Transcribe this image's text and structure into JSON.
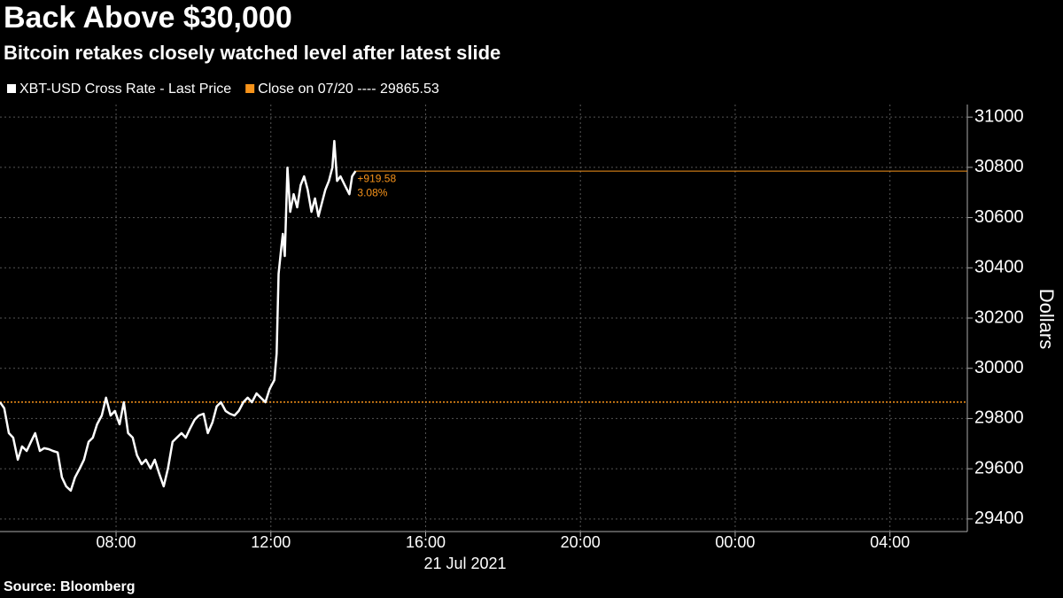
{
  "chart_data": {
    "type": "line",
    "title": "Back Above $30,000",
    "subtitle": "Bitcoin retakes closely watched level after latest slide",
    "x_axis_label": "21 Jul 2021",
    "y_axis_label": "Dollars",
    "source": "Source:  Bloomberg",
    "xlim": [
      5,
      30
    ],
    "xticks": [
      {
        "value": 8,
        "label": "08:00"
      },
      {
        "value": 12,
        "label": "12:00"
      },
      {
        "value": 16,
        "label": "16:00"
      },
      {
        "value": 20,
        "label": "20:00"
      },
      {
        "value": 24,
        "label": "00:00"
      },
      {
        "value": 28,
        "label": "04:00"
      }
    ],
    "ylim": [
      29350,
      31050
    ],
    "yticks": [
      29400,
      29600,
      29800,
      30000,
      30200,
      30400,
      30600,
      30800,
      31000
    ],
    "grid": true,
    "series": [
      {
        "name": "XBT-USD Cross Rate - Last Price",
        "color": "#ffffff",
        "x": [
          5.0,
          5.11,
          5.23,
          5.34,
          5.46,
          5.57,
          5.69,
          5.8,
          5.91,
          6.03,
          6.14,
          6.26,
          6.37,
          6.49,
          6.6,
          6.71,
          6.83,
          6.94,
          7.06,
          7.17,
          7.29,
          7.4,
          7.51,
          7.63,
          7.74,
          7.86,
          7.97,
          8.09,
          8.2,
          8.31,
          8.43,
          8.54,
          8.66,
          8.77,
          8.89,
          9.0,
          9.11,
          9.23,
          9.34,
          9.46,
          9.57,
          9.69,
          9.8,
          9.91,
          10.03,
          10.14,
          10.26,
          10.37,
          10.49,
          10.6,
          10.71,
          10.83,
          10.94,
          11.06,
          11.17,
          11.29,
          11.4,
          11.51,
          11.63,
          11.74,
          11.86,
          11.97,
          12.09,
          12.15,
          12.2,
          12.27,
          12.31,
          12.36,
          12.43,
          12.5,
          12.59,
          12.68,
          12.77,
          12.86,
          12.95,
          13.05,
          13.14,
          13.23,
          13.32,
          13.41,
          13.5,
          13.59,
          13.64,
          13.71,
          13.8,
          13.91,
          14.03,
          14.1,
          14.19
        ],
        "values": [
          29865,
          29841,
          29742,
          29724,
          29636,
          29689,
          29671,
          29707,
          29742,
          29671,
          29682,
          29678,
          29671,
          29665,
          29566,
          29530,
          29513,
          29566,
          29601,
          29636,
          29707,
          29724,
          29777,
          29812,
          29883,
          29812,
          29830,
          29777,
          29865,
          29742,
          29724,
          29654,
          29618,
          29636,
          29601,
          29636,
          29583,
          29530,
          29601,
          29707,
          29724,
          29742,
          29724,
          29760,
          29795,
          29812,
          29819,
          29742,
          29784,
          29848,
          29865,
          29830,
          29819,
          29812,
          29830,
          29865,
          29883,
          29865,
          29900,
          29883,
          29865,
          29918,
          29953,
          30059,
          30376,
          30482,
          30535,
          30447,
          30799,
          30623,
          30693,
          30641,
          30729,
          30764,
          30711,
          30623,
          30676,
          30605,
          30658,
          30711,
          30746,
          30799,
          30905,
          30746,
          30764,
          30729,
          30693,
          30764,
          30785
        ]
      }
    ],
    "last_line_color": "#f7931a",
    "reference_lines": [
      {
        "name": "Close on 07/20 ---- 29865.53",
        "value": 29865.53,
        "color": "#f7931a"
      }
    ],
    "change_labels": [
      {
        "value": 919.58,
        "label": "+919.58"
      },
      {
        "value": 3.08,
        "label": "3.08%"
      }
    ]
  }
}
